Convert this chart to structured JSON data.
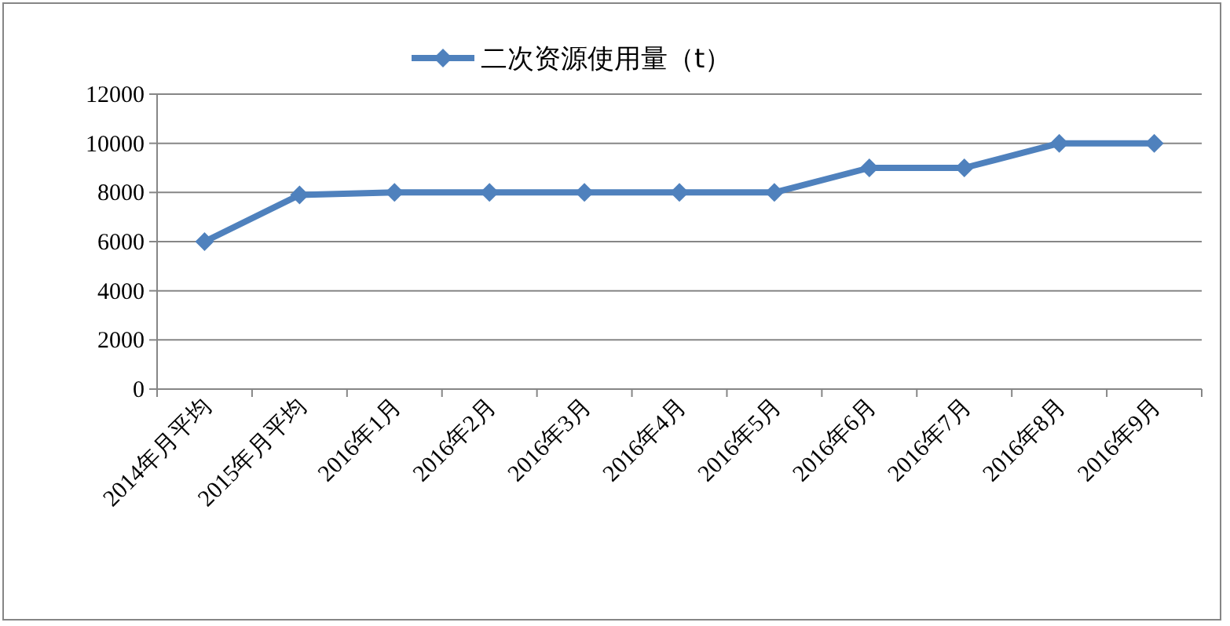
{
  "chart_data": {
    "type": "line",
    "categories": [
      "2014年月平均",
      "2015年月平均",
      "2016年1月",
      "2016年2月",
      "2016年3月",
      "2016年4月",
      "2016年5月",
      "2016年6月",
      "2016年7月",
      "2016年8月",
      "2016年9月"
    ],
    "series": [
      {
        "name": "二次资源使用量（t）",
        "color": "#4f81bd",
        "values": [
          6000,
          7900,
          8000,
          8000,
          8000,
          8000,
          8000,
          9000,
          9000,
          10000,
          10000
        ]
      }
    ],
    "ylim": [
      0,
      12000
    ],
    "yticks": [
      0,
      2000,
      4000,
      6000,
      8000,
      10000,
      12000
    ],
    "grid": "y",
    "legend": "top",
    "marker": "diamond",
    "line_style": "solid"
  }
}
